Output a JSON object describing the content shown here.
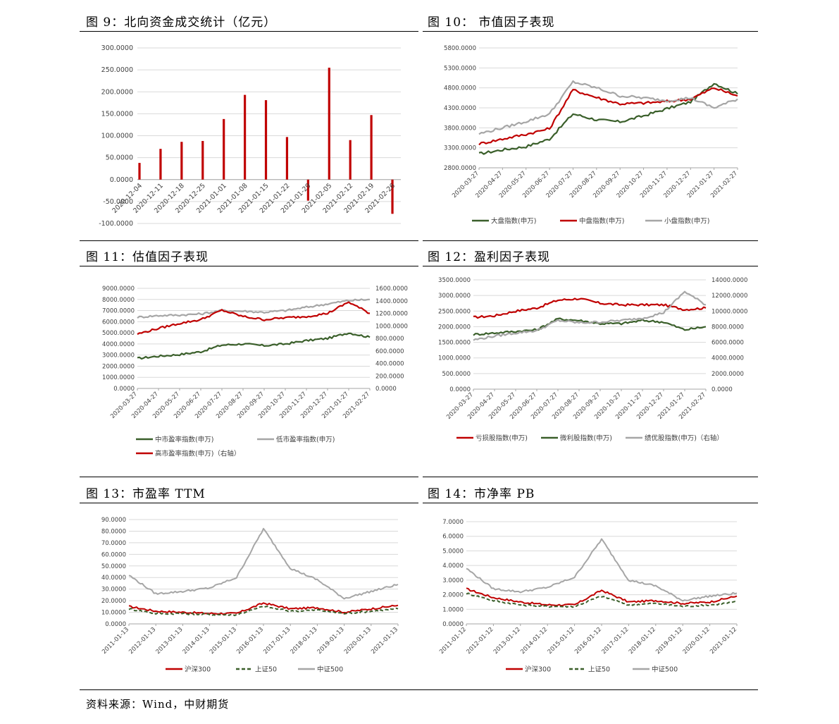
{
  "captions": {
    "fig9": "图 9：北向资金成交统计（亿元）",
    "fig10": "图 10：  市值因子表现",
    "fig11": "图 11：估值因子表现",
    "fig12": "图 12：盈利因子表现",
    "fig13": "图 13：市盈率 TTM",
    "fig14": "图 14：市净率 PB"
  },
  "source": "资料来源：Wind，中财期货",
  "chart_data": [
    {
      "id": "fig9",
      "type": "bar",
      "categories": [
        "2020-12-04",
        "2020-12-11",
        "2020-12-18",
        "2020-12-25",
        "2021-01-01",
        "2021-01-08",
        "2021-01-15",
        "2021-01-22",
        "2021-01-29",
        "2021-02-05",
        "2021-02-12",
        "2021-02-19",
        "2021-02-26"
      ],
      "values": [
        38,
        70,
        86,
        88,
        138,
        193,
        181,
        97,
        -48,
        255,
        90,
        147,
        -78
      ],
      "ylim": [
        -100,
        300
      ],
      "yticks": [
        "-100.0000",
        "-50.0000",
        "0.0000",
        "50.0000",
        "100.0000",
        "150.0000",
        "200.0000",
        "250.0000",
        "300.0000"
      ],
      "color": "#c00000",
      "grid": true
    },
    {
      "id": "fig10",
      "type": "line",
      "x": [
        "2020-03-27",
        "2020-04-27",
        "2020-05-27",
        "2020-06-27",
        "2020-07-27",
        "2020-08-27",
        "2020-09-27",
        "2020-10-27",
        "2020-11-27",
        "2020-12-27",
        "2021-01-27",
        "2021-02-27"
      ],
      "ylim": [
        2800,
        5800
      ],
      "yticks": [
        "2800.0000",
        "3300.0000",
        "3800.0000",
        "4300.0000",
        "4800.0000",
        "5300.0000",
        "5800.0000"
      ],
      "legend_position": "bottom",
      "series": [
        {
          "name": "大盘指数(申万)",
          "color": "#3a5f2a",
          "values": [
            3150,
            3250,
            3330,
            3520,
            4150,
            4000,
            3950,
            4100,
            4280,
            4450,
            4920,
            4650
          ]
        },
        {
          "name": "中盘指数(申万)",
          "color": "#c00000",
          "values": [
            3400,
            3520,
            3640,
            3780,
            4750,
            4560,
            4400,
            4420,
            4460,
            4520,
            4800,
            4600
          ]
        },
        {
          "name": "小盘指数(申万)",
          "color": "#a6a6a6",
          "values": [
            3650,
            3800,
            3960,
            4150,
            4950,
            4800,
            4600,
            4550,
            4480,
            4550,
            4300,
            4520
          ]
        }
      ]
    },
    {
      "id": "fig11",
      "type": "line",
      "x": [
        "2020-03-27",
        "2020-04-27",
        "2020-05-27",
        "2020-06-27",
        "2020-07-27",
        "2020-08-27",
        "2020-09-27",
        "2020-10-27",
        "2020-11-27",
        "2020-12-27",
        "2021-01-27",
        "2021-02-27"
      ],
      "ylim": [
        0,
        9000
      ],
      "y2lim": [
        0,
        1600
      ],
      "yticks": [
        "0.0000",
        "1000.0000",
        "2000.0000",
        "3000.0000",
        "4000.0000",
        "5000.0000",
        "6000.0000",
        "7000.0000",
        "8000.0000",
        "9000.0000"
      ],
      "y2ticks": [
        "0.0000",
        "200.0000",
        "400.0000",
        "600.0000",
        "800.0000",
        "1000.0000",
        "1200.0000",
        "1400.0000",
        "1600.0000"
      ],
      "legend_position": "bottom",
      "series": [
        {
          "name": "中市盈率指数(申万)",
          "color": "#3a5f2a",
          "axis": "left",
          "values": [
            2700,
            2900,
            3050,
            3300,
            3900,
            4000,
            3850,
            4000,
            4300,
            4500,
            5000,
            4600
          ]
        },
        {
          "name": "低市盈率指数(申万)",
          "color": "#a6a6a6",
          "axis": "left",
          "values": [
            6400,
            6550,
            6600,
            6700,
            7000,
            6950,
            6850,
            7000,
            7300,
            7600,
            7900,
            8000
          ]
        },
        {
          "name": "高市盈率指数(申万)（右轴）",
          "color": "#c00000",
          "axis": "right",
          "values": [
            870,
            960,
            1040,
            1100,
            1250,
            1150,
            1100,
            1130,
            1150,
            1200,
            1380,
            1200
          ]
        }
      ]
    },
    {
      "id": "fig12",
      "type": "line",
      "x": [
        "2020-03-27",
        "2020-04-27",
        "2020-05-27",
        "2020-06-27",
        "2020-07-27",
        "2020-08-27",
        "2020-09-27",
        "2020-10-27",
        "2020-11-27",
        "2020-12-27",
        "2021-01-27",
        "2021-02-27"
      ],
      "ylim": [
        0,
        3500
      ],
      "y2lim": [
        0,
        14000
      ],
      "yticks": [
        "0.0000",
        "500.0000",
        "1000.0000",
        "1500.0000",
        "2000.0000",
        "2500.0000",
        "3000.0000",
        "3500.0000"
      ],
      "y2ticks": [
        "0.0000",
        "2000.0000",
        "4000.0000",
        "6000.0000",
        "8000.0000",
        "10000.0000",
        "12000.0000",
        "14000.0000"
      ],
      "legend_position": "bottom",
      "series": [
        {
          "name": "亏损股指数(申万)",
          "color": "#c00000",
          "axis": "left",
          "values": [
            2300,
            2350,
            2500,
            2600,
            2850,
            2900,
            2750,
            2700,
            2700,
            2700,
            2550,
            2600
          ]
        },
        {
          "name": "微利股指数(申万)",
          "color": "#3a5f2a",
          "axis": "left",
          "values": [
            1750,
            1800,
            1850,
            1900,
            2250,
            2200,
            2100,
            2100,
            2200,
            2150,
            1900,
            2000
          ]
        },
        {
          "name": "绩优股指数(申万)（右轴）",
          "color": "#a6a6a6",
          "axis": "right",
          "values": [
            6300,
            6800,
            7200,
            7500,
            8800,
            8500,
            8600,
            8800,
            9100,
            9800,
            12500,
            10800
          ]
        }
      ]
    },
    {
      "id": "fig13",
      "type": "line",
      "x": [
        "2011-01-13",
        "2012-01-13",
        "2013-01-13",
        "2014-01-13",
        "2015-01-13",
        "2016-01-13",
        "2017-01-13",
        "2018-01-13",
        "2019-01-13",
        "2020-01-13",
        "2021-01-13"
      ],
      "ylim": [
        0,
        90
      ],
      "yticks": [
        "0.0000",
        "10.0000",
        "20.0000",
        "30.0000",
        "40.0000",
        "50.0000",
        "60.0000",
        "70.0000",
        "80.0000",
        "90.0000"
      ],
      "legend_position": "bottom",
      "series": [
        {
          "name": "沪深300",
          "color": "#c00000",
          "values": [
            15,
            11,
            10,
            9,
            9,
            18,
            13,
            14,
            10,
            13,
            16
          ]
        },
        {
          "name": "上证50",
          "color": "#3a5f2a",
          "dashed": true,
          "values": [
            13,
            9,
            9,
            8,
            8,
            15,
            11,
            12,
            9,
            11,
            13
          ]
        },
        {
          "name": "中证500",
          "color": "#a6a6a6",
          "values": [
            42,
            26,
            28,
            31,
            40,
            82,
            48,
            38,
            22,
            28,
            34
          ]
        }
      ]
    },
    {
      "id": "fig14",
      "type": "line",
      "x": [
        "2011-01-12",
        "2012-01-12",
        "2013-01-12",
        "2014-01-12",
        "2015-01-12",
        "2016-01-12",
        "2017-01-12",
        "2018-01-12",
        "2019-01-12",
        "2020-01-12",
        "2021-01-12"
      ],
      "ylim": [
        0,
        7
      ],
      "yticks": [
        "0.0000",
        "1.0000",
        "2.0000",
        "3.0000",
        "4.0000",
        "5.0000",
        "6.0000",
        "7.0000"
      ],
      "legend_position": "bottom",
      "series": [
        {
          "name": "沪深300",
          "color": "#c00000",
          "values": [
            2.4,
            1.8,
            1.5,
            1.3,
            1.3,
            2.3,
            1.5,
            1.6,
            1.4,
            1.5,
            1.9
          ]
        },
        {
          "name": "上证50",
          "color": "#3a5f2a",
          "dashed": true,
          "values": [
            2.1,
            1.6,
            1.3,
            1.2,
            1.2,
            1.9,
            1.3,
            1.4,
            1.2,
            1.3,
            1.5
          ]
        },
        {
          "name": "中证500",
          "color": "#a6a6a6",
          "values": [
            3.8,
            2.4,
            2.2,
            2.5,
            3.2,
            5.8,
            3.0,
            2.6,
            1.6,
            1.9,
            2.1
          ]
        }
      ]
    }
  ]
}
